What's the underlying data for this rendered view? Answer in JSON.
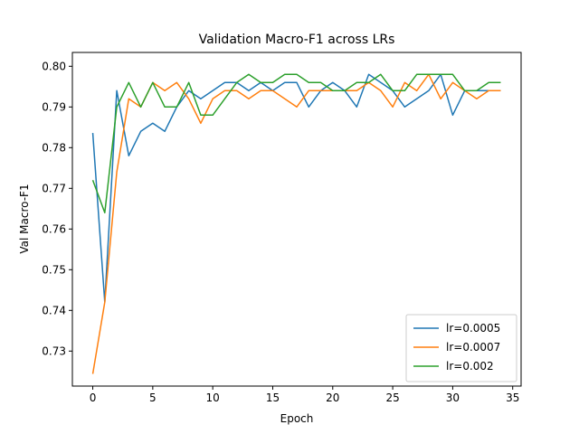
{
  "chart_data": {
    "type": "line",
    "title": "Validation Macro-F1 across LRs",
    "xlabel": "Epoch",
    "ylabel": "Val Macro-F1",
    "xlim": [
      -1.7,
      35.7
    ],
    "ylim": [
      0.7214,
      0.8034
    ],
    "xticks": [
      0,
      5,
      10,
      15,
      20,
      25,
      30,
      35
    ],
    "yticks": [
      0.73,
      0.74,
      0.75,
      0.76,
      0.77,
      0.78,
      0.79,
      0.8
    ],
    "ytick_labels": [
      "0.73",
      "0.74",
      "0.75",
      "0.76",
      "0.77",
      "0.78",
      "0.79",
      "0.80"
    ],
    "grid": false,
    "legend_position": "lower-right",
    "x": [
      0,
      1,
      2,
      3,
      4,
      5,
      6,
      7,
      8,
      9,
      10,
      11,
      12,
      13,
      14,
      15,
      16,
      17,
      18,
      19,
      20,
      21,
      22,
      23,
      24,
      25,
      26,
      27,
      28,
      29,
      30,
      31,
      32,
      33,
      34
    ],
    "series": [
      {
        "name": "lr=0.0005",
        "color": "#1f77b4",
        "values": [
          0.7836,
          0.742,
          0.794,
          0.778,
          0.784,
          0.786,
          0.784,
          0.79,
          0.794,
          0.792,
          0.794,
          0.796,
          0.796,
          0.794,
          0.796,
          0.794,
          0.796,
          0.796,
          0.79,
          0.794,
          0.796,
          0.794,
          0.79,
          0.798,
          0.796,
          0.794,
          0.79,
          0.792,
          0.794,
          0.798,
          0.788,
          0.794,
          0.794,
          0.794,
          0.794
        ]
      },
      {
        "name": "lr=0.0007",
        "color": "#ff7f0e",
        "values": [
          0.7244,
          0.742,
          0.774,
          0.792,
          0.79,
          0.796,
          0.794,
          0.796,
          0.792,
          0.786,
          0.792,
          0.794,
          0.794,
          0.792,
          0.794,
          0.794,
          0.792,
          0.79,
          0.794,
          0.794,
          0.794,
          0.794,
          0.794,
          0.796,
          0.794,
          0.79,
          0.796,
          0.794,
          0.798,
          0.792,
          0.796,
          0.794,
          0.792,
          0.794,
          0.794
        ]
      },
      {
        "name": "lr=0.002",
        "color": "#2ca02c",
        "values": [
          0.772,
          0.764,
          0.79,
          0.796,
          0.79,
          0.796,
          0.79,
          0.79,
          0.796,
          0.788,
          0.788,
          0.792,
          0.796,
          0.798,
          0.796,
          0.796,
          0.798,
          0.798,
          0.796,
          0.796,
          0.794,
          0.794,
          0.796,
          0.796,
          0.798,
          0.794,
          0.794,
          0.798,
          0.798,
          0.798,
          0.798,
          0.794,
          0.794,
          0.796,
          0.796
        ]
      }
    ]
  }
}
